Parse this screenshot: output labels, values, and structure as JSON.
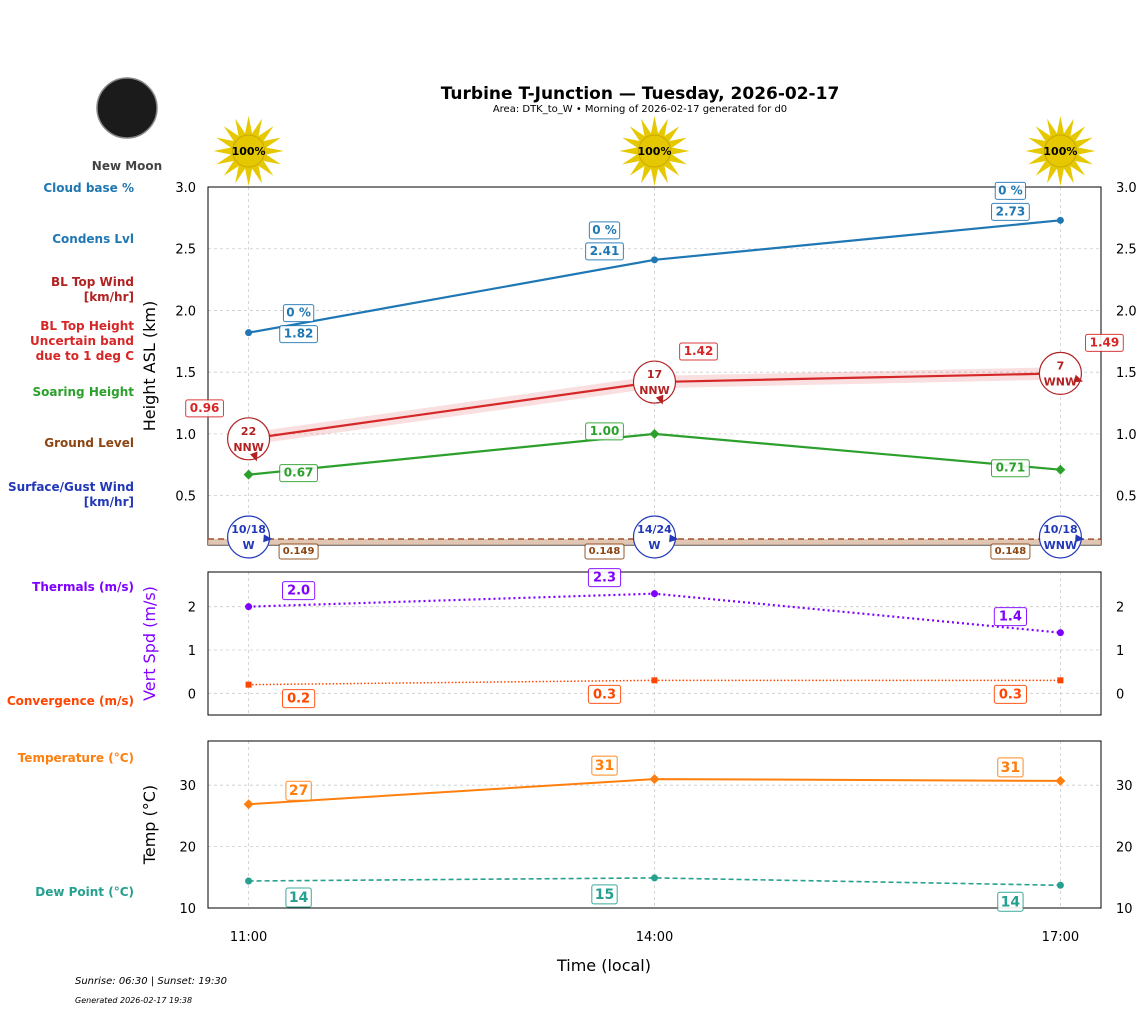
{
  "title": "Turbine T-Junction — Tuesday, 2026-02-17",
  "subtitle": "Area: DTK_to_W • Morning of 2026-02-17 generated for d0",
  "moon": {
    "phase": "New Moon",
    "icon": "new-moon-icon"
  },
  "footer": {
    "sun": "Sunrise: 06:30 | Sunset: 19:30",
    "generated": "Generated 2026-02-17 19:38"
  },
  "xlabel": "Time (local)",
  "x_ticks": [
    "11:00",
    "14:00",
    "17:00"
  ],
  "side_labels": {
    "cloud_base": "Cloud base %",
    "condens": "Condens Lvl",
    "bl_wind": [
      "BL Top Wind",
      "[km/hr]"
    ],
    "bl_height": [
      "BL Top Height",
      "Uncertain band",
      "due to 1 deg C"
    ],
    "soaring": "Soaring Height",
    "ground": "Ground Level",
    "surface_wind": [
      "Surface/Gust Wind",
      "[km/hr]"
    ],
    "thermals": "Thermals (m/s)",
    "convergence": "Convergence (m/s)",
    "temperature": "Temperature (°C)",
    "dew": "Dew Point (°C)"
  },
  "colors": {
    "condens": "#1f77b4",
    "bl": "#d62728",
    "bl_wind": "#b22222",
    "soaring": "#2ca02c",
    "ground": "#8b4513",
    "surface": "#2238b8",
    "thermal": "#8000ff",
    "conv": "#ff4500",
    "temp": "#ff7f0e",
    "dew": "#26a08f",
    "sun": "#e6c800"
  },
  "chart_data": [
    {
      "type": "line",
      "ylabel": "Height ASL (km)",
      "ylim": [
        0.1,
        3.0
      ],
      "y_ticks": [
        "0.5",
        "1.0",
        "1.5",
        "2.0",
        "2.5",
        "3.0"
      ],
      "x": [
        11,
        14,
        17
      ],
      "grid": true,
      "sun_pct": [
        "100%",
        "100%",
        "100%"
      ],
      "cloud_base_pct": [
        "0 %",
        "0 %",
        "0 %"
      ],
      "condens": [
        1.82,
        2.41,
        2.73
      ],
      "condens_labels": [
        "1.82",
        "2.41",
        "2.73"
      ],
      "bl_top": [
        0.96,
        1.42,
        1.49
      ],
      "bl_top_labels": [
        "0.96",
        "1.42",
        "1.49"
      ],
      "bl_wind": [
        {
          "speed": "22",
          "dir": "NNW"
        },
        {
          "speed": "17",
          "dir": "NNW"
        },
        {
          "speed": "7",
          "dir": "WNW"
        }
      ],
      "soaring": [
        0.67,
        1.0,
        0.71
      ],
      "soaring_labels": [
        "0.67",
        "1.00",
        "0.71"
      ],
      "ground": [
        0.149,
        0.148,
        0.148
      ],
      "ground_labels": [
        "0.149",
        "0.148",
        "0.148"
      ],
      "surface_wind": [
        {
          "speed": "10/18",
          "dir": "W"
        },
        {
          "speed": "14/24",
          "dir": "W"
        },
        {
          "speed": "10/18",
          "dir": "WNW"
        }
      ]
    },
    {
      "type": "line",
      "ylabel": "Vert Spd (m/s)",
      "ylim": [
        -0.5,
        2.8
      ],
      "y_ticks": [
        "0",
        "1",
        "2"
      ],
      "x": [
        11,
        14,
        17
      ],
      "grid": true,
      "thermals": [
        2.0,
        2.3,
        1.4
      ],
      "thermal_labels": [
        "2.0",
        "2.3",
        "1.4"
      ],
      "convergence": [
        0.2,
        0.3,
        0.3
      ],
      "conv_labels": [
        "0.2",
        "0.3",
        "0.3"
      ]
    },
    {
      "type": "line",
      "ylabel": "Temp (°C)",
      "ylim": [
        10,
        37.2
      ],
      "y_ticks": [
        "10",
        "20",
        "30"
      ],
      "x": [
        11,
        14,
        17
      ],
      "grid": true,
      "temperature": [
        26.9,
        31.0,
        30.7
      ],
      "temp_labels": [
        "27",
        "31",
        "31"
      ],
      "dew": [
        14.4,
        14.9,
        13.7
      ],
      "dew_labels": [
        "14",
        "15",
        "14"
      ]
    }
  ]
}
